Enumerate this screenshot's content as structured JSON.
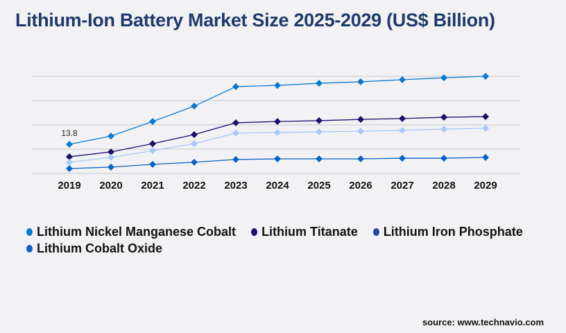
{
  "chart_data": {
    "type": "line",
    "title": "Lithium-Ion Battery Market Size 2025-2029 (US$ Billion)",
    "categories": [
      "2019",
      "2020",
      "2021",
      "2022",
      "2023",
      "2024",
      "2025",
      "2026",
      "2027",
      "2028",
      "2029"
    ],
    "ylim": [
      0,
      46
    ],
    "grid": true,
    "legend_position": "bottom",
    "annotations": [
      {
        "series": "Lithium Nickel Manganese Cobalt",
        "x": "2019",
        "label": "13.8"
      }
    ],
    "series": [
      {
        "name": "Lithium Nickel Manganese Cobalt",
        "color": "#0a7bd0",
        "legend_color": "#0a7bd0",
        "values": [
          13.8,
          17.7,
          24.6,
          31.9,
          41.1,
          41.7,
          42.7,
          43.4,
          44.4,
          45.3,
          46.0
        ]
      },
      {
        "name": "Lithium Titanate",
        "color": "#1a1070",
        "legend_color": "#1a1070",
        "values": [
          7.9,
          10.2,
          14.1,
          18.4,
          24.0,
          24.6,
          25.0,
          25.6,
          26.0,
          26.6,
          26.9
        ]
      },
      {
        "name": "Lithium Iron Phosphate",
        "color": "#a8c8f8",
        "legend_color": "#1c48a8",
        "values": [
          5.3,
          7.6,
          10.8,
          14.1,
          19.1,
          19.4,
          19.7,
          20.0,
          20.4,
          21.0,
          21.4
        ]
      },
      {
        "name": "Lithium Cobalt Oxide",
        "color": "#0a62c8",
        "legend_color": "#0a62c8",
        "values": [
          2.3,
          3.0,
          4.3,
          5.3,
          6.6,
          6.9,
          6.9,
          6.9,
          7.2,
          7.2,
          7.6
        ]
      }
    ]
  },
  "source": "source: www.technavio.com"
}
